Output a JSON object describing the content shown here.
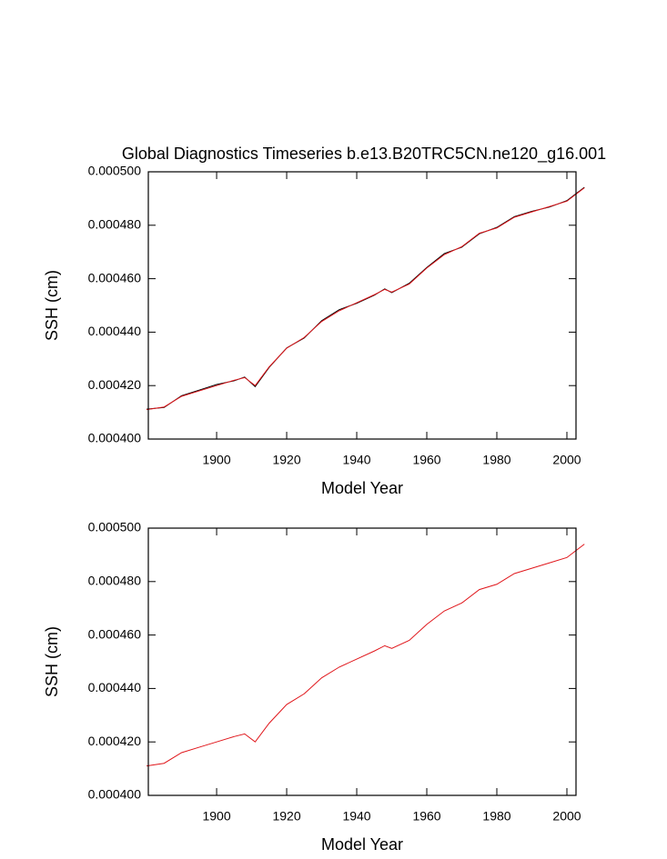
{
  "chart_data": [
    {
      "type": "line",
      "title": "Global Diagnostics Timeseries b.e13.B20TRC5CN.ne120_g16.001",
      "x_label": "Model Year",
      "y_label": "SSH (cm)",
      "x": [
        1880,
        1885,
        1890,
        1895,
        1900,
        1905,
        1908,
        1911,
        1915,
        1920,
        1925,
        1930,
        1935,
        1940,
        1945,
        1948,
        1950,
        1955,
        1960,
        1965,
        1970,
        1975,
        1980,
        1985,
        1990,
        1995,
        2000,
        2005
      ],
      "series": [
        {
          "color": "#000000",
          "values": [
            0.0004112,
            0.0004118,
            0.0004162,
            0.0004183,
            0.0004204,
            0.0004218,
            0.0004232,
            0.0004196,
            0.0004268,
            0.0004341,
            0.0004378,
            0.0004443,
            0.0004484,
            0.0004508,
            0.0004538,
            0.0004562,
            0.0004548,
            0.0004583,
            0.0004642,
            0.0004694,
            0.0004718,
            0.0004768,
            0.0004792,
            0.0004832,
            0.0004852,
            0.0004868,
            0.0004892,
            0.0004942
          ]
        },
        {
          "color": "#e0161b",
          "values": [
            0.000411,
            0.000412,
            0.000416,
            0.000418,
            0.00042,
            0.000422,
            0.000423,
            0.00042,
            0.000427,
            0.000434,
            0.000438,
            0.000444,
            0.000448,
            0.000451,
            0.000454,
            0.000456,
            0.000455,
            0.000458,
            0.000464,
            0.000469,
            0.000472,
            0.000477,
            0.000479,
            0.000483,
            0.000485,
            0.000487,
            0.000489,
            0.000494
          ]
        }
      ],
      "xlim": [
        1880.5,
        2002.6
      ],
      "xticks": [
        1900,
        1920,
        1940,
        1960,
        1980,
        2000
      ],
      "ylim": [
        0.0004,
        0.0005
      ],
      "yticks": [
        {
          "value": 0.0004,
          "label": "0.000400"
        },
        {
          "value": 0.00042,
          "label": "0.000420"
        },
        {
          "value": 0.00044,
          "label": "0.000440"
        },
        {
          "value": 0.00046,
          "label": "0.000460"
        },
        {
          "value": 0.00048,
          "label": "0.000480"
        },
        {
          "value": 0.0005,
          "label": "0.000500"
        }
      ]
    },
    {
      "type": "line",
      "x_label": "Model Year",
      "y_label": "SSH (cm)",
      "x": [
        1880,
        1885,
        1890,
        1895,
        1900,
        1905,
        1908,
        1911,
        1915,
        1920,
        1925,
        1930,
        1935,
        1940,
        1945,
        1948,
        1950,
        1955,
        1960,
        1965,
        1970,
        1975,
        1980,
        1985,
        1990,
        1995,
        2000,
        2005
      ],
      "series": [
        {
          "color": "#e0161b",
          "values": [
            0.000411,
            0.000412,
            0.000416,
            0.000418,
            0.00042,
            0.000422,
            0.000423,
            0.00042,
            0.000427,
            0.000434,
            0.000438,
            0.000444,
            0.000448,
            0.000451,
            0.000454,
            0.000456,
            0.000455,
            0.000458,
            0.000464,
            0.000469,
            0.000472,
            0.000477,
            0.000479,
            0.000483,
            0.000485,
            0.000487,
            0.000489,
            0.000494
          ]
        }
      ],
      "xlim": [
        1880.5,
        2002.6
      ],
      "xticks": [
        1900,
        1920,
        1940,
        1960,
        1980,
        2000
      ],
      "ylim": [
        0.0004,
        0.0005
      ],
      "yticks": [
        {
          "value": 0.0004,
          "label": "0.000400"
        },
        {
          "value": 0.00042,
          "label": "0.000420"
        },
        {
          "value": 0.00044,
          "label": "0.000440"
        },
        {
          "value": 0.00046,
          "label": "0.000460"
        },
        {
          "value": 0.00048,
          "label": "0.000480"
        },
        {
          "value": 0.0005,
          "label": "0.000500"
        }
      ]
    }
  ]
}
